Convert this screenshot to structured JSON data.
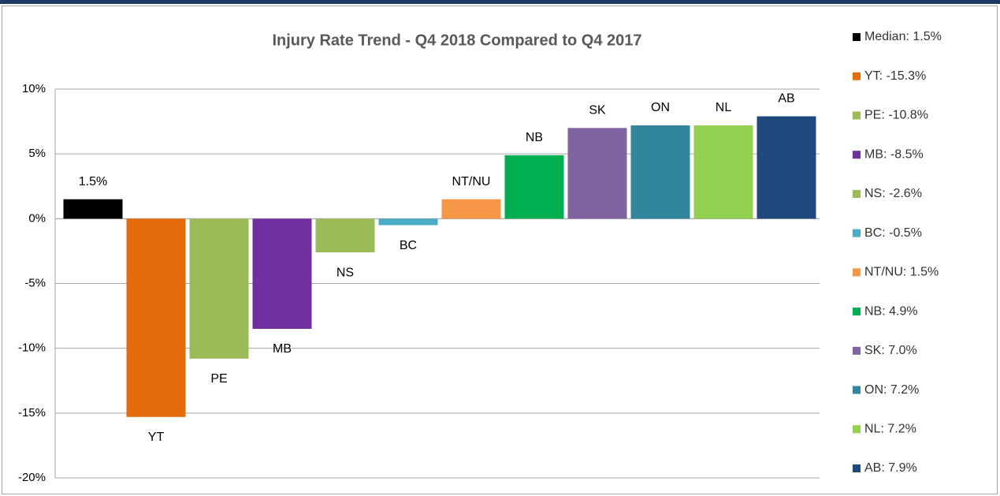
{
  "chart_data": {
    "type": "bar",
    "title": "Injury Rate Trend - Q4 2018 Compared to Q4 2017",
    "categories": [
      null,
      "YT",
      "PE",
      "MB",
      "NS",
      "BC",
      "NT/NU",
      "NB",
      "SK",
      "ON",
      "NL",
      "AB"
    ],
    "values": [
      1.5,
      -15.3,
      -10.8,
      -8.5,
      -2.6,
      -0.5,
      1.5,
      4.9,
      7.0,
      7.2,
      7.2,
      7.9
    ],
    "value_labels": [
      "1.5%",
      null,
      null,
      null,
      null,
      null,
      null,
      null,
      null,
      null,
      null,
      null
    ],
    "colors": [
      "#000000",
      "#e36c0a",
      "#9bbb59",
      "#7030a0",
      "#9bbb59",
      "#4bacc6",
      "#f79646",
      "#00b050",
      "#8064a2",
      "#31859c",
      "#92d050",
      "#1f497d"
    ],
    "legend": [
      "Median: 1.5%",
      "YT: -15.3%",
      "PE: -10.8%",
      "MB: -8.5%",
      "NS: -2.6%",
      "BC: -0.5%",
      "NT/NU: 1.5%",
      "NB: 4.9%",
      "SK: 7.0%",
      "ON: 7.2%",
      "NL: 7.2%",
      "AB: 7.9%"
    ],
    "ylim": [
      -20,
      10
    ],
    "yticks": [
      {
        "value": -20,
        "label": "-20%"
      },
      {
        "value": -15,
        "label": "-15%"
      },
      {
        "value": -10,
        "label": "-10%"
      },
      {
        "value": -5,
        "label": "-5%"
      },
      {
        "value": 0,
        "label": "0%"
      },
      {
        "value": 5,
        "label": "5%"
      },
      {
        "value": 10,
        "label": "10%"
      }
    ],
    "grid": true,
    "legend_position": "right"
  }
}
